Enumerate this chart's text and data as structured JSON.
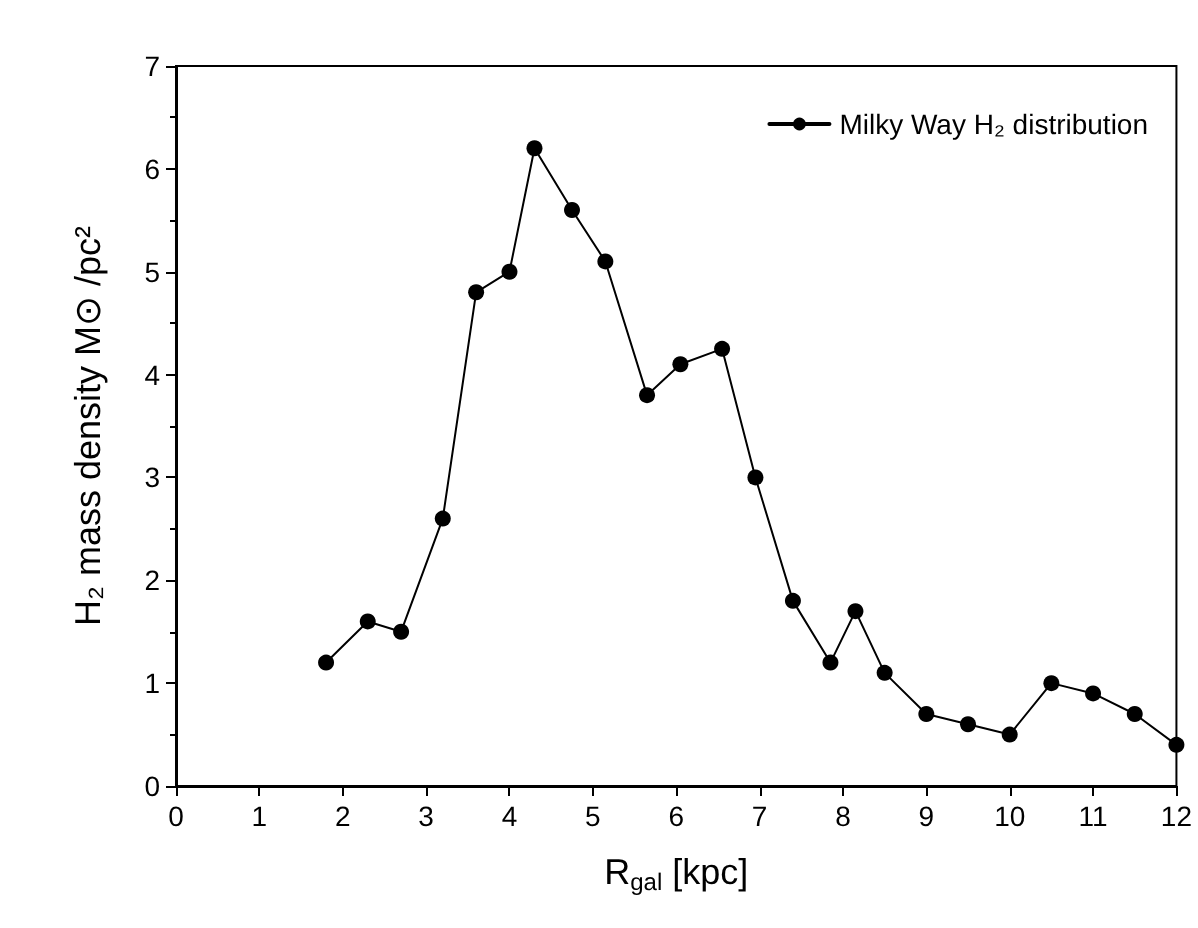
{
  "chart_data": {
    "type": "line",
    "xlabel": "R$_{gal}$ [kpc]",
    "ylabel": "H₂ mass density M⊙ /pc²",
    "x": [
      1.8,
      2.3,
      2.7,
      3.2,
      3.6,
      4.0,
      4.3,
      4.75,
      5.15,
      5.65,
      6.05,
      6.55,
      6.95,
      7.4,
      7.85,
      8.15,
      8.5,
      9.0,
      9.5,
      10.0,
      10.5,
      11.0,
      11.5,
      12.0
    ],
    "series": [
      {
        "name": "Milky Way H₂ distribution",
        "color": "#000000",
        "values": [
          1.2,
          1.6,
          1.5,
          2.6,
          4.8,
          5.0,
          6.2,
          5.6,
          5.1,
          3.8,
          4.1,
          4.25,
          3.0,
          1.8,
          1.2,
          1.7,
          1.1,
          0.7,
          0.6,
          0.5,
          1.0,
          0.9,
          0.7,
          0.4
        ]
      }
    ],
    "xlim": [
      0,
      12
    ],
    "xticks": [
      0,
      1,
      2,
      3,
      4,
      5,
      6,
      7,
      8,
      9,
      10,
      11,
      12
    ],
    "ylim": [
      0,
      7
    ],
    "yticks": [
      0,
      1,
      2,
      3,
      4,
      5,
      6,
      7
    ],
    "grid": false,
    "legend": "top right",
    "marker": "circle",
    "line_style": "solid"
  }
}
